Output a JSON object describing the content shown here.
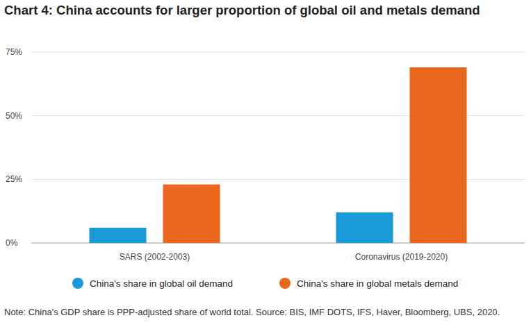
{
  "chart_data": {
    "type": "bar",
    "title": "Chart 4: China accounts for larger proportion of global oil and metals demand",
    "note": "Note: China's GDP share is PPP-adjusted share of world total. Source: BIS, IMF DOTS, IFS, Haver, Bloomberg, UBS, 2020.",
    "categories": [
      "SARS (2002-2003)",
      "Coronavirus (2019-2020)"
    ],
    "series": [
      {
        "name": "China's share in global oil demand",
        "color": "#1a9ad6",
        "values": [
          6,
          12
        ]
      },
      {
        "name": "China's share in global metals demand",
        "color": "#e9681e",
        "values": [
          23,
          69
        ]
      }
    ],
    "ylim": [
      0,
      75
    ],
    "yticks": [
      {
        "value": 0,
        "label": "0%"
      },
      {
        "value": 25,
        "label": "25%"
      },
      {
        "value": 50,
        "label": "50%"
      },
      {
        "value": 75,
        "label": "75%"
      }
    ],
    "grid": true,
    "legend": "bottom"
  }
}
